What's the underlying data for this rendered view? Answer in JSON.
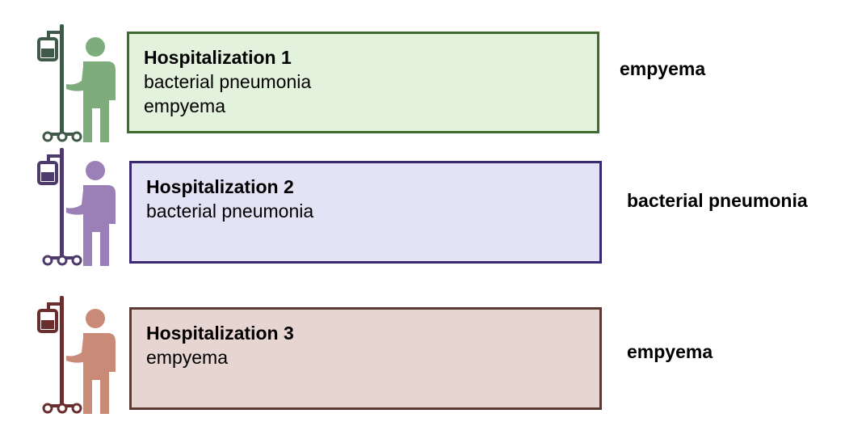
{
  "rows": [
    {
      "title": "Hospitalization 1",
      "lines": [
        "bacterial pneumonia",
        "empyema"
      ],
      "side_label": "empyema",
      "pole_color": "#3f5a48",
      "person_color": "#7fac7c",
      "box_fill": "#e3f2dc",
      "box_border": "#3f6a30"
    },
    {
      "title": "Hospitalization 2",
      "lines": [
        "bacterial pneumonia"
      ],
      "side_label": "bacterial pneumonia",
      "pole_color": "#4e3a6c",
      "person_color": "#9b80b8",
      "box_fill": "#e4e3f6",
      "box_border": "#3b2a73"
    },
    {
      "title": "Hospitalization 3",
      "lines": [
        "empyema"
      ],
      "side_label": "empyema",
      "pole_color": "#6b2e2e",
      "person_color": "#c98a78",
      "box_fill": "#e7d5d1",
      "box_border": "#5a3a33"
    }
  ]
}
